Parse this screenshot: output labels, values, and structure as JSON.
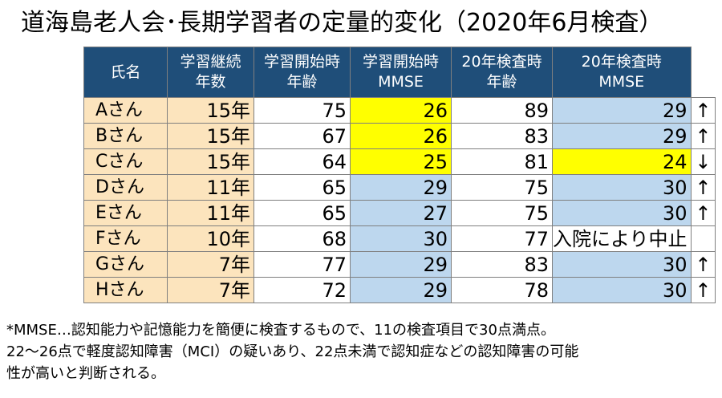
{
  "title": "道海島老人会･長期学習者の定量的変化（2020年6月検査）",
  "table": {
    "headers": [
      "氏名",
      "学習継続\n年数",
      "学習開始時\n年齢",
      "学習開始時\nMMSE",
      "20年検査時\n年齢",
      "20年検査時\nMMSE"
    ],
    "rows": [
      {
        "name": "Aさん",
        "years": "15年",
        "start_age": "75",
        "start_mmse": "26",
        "age_2020": "89",
        "mmse_2020": "29",
        "trend": "↑"
      },
      {
        "name": "Bさん",
        "years": "15年",
        "start_age": "67",
        "start_mmse": "26",
        "age_2020": "83",
        "mmse_2020": "29",
        "trend": "↑"
      },
      {
        "name": "Cさん",
        "years": "15年",
        "start_age": "64",
        "start_mmse": "25",
        "age_2020": "81",
        "mmse_2020": "24",
        "trend": "↓"
      },
      {
        "name": "Dさん",
        "years": "11年",
        "start_age": "65",
        "start_mmse": "29",
        "age_2020": "75",
        "mmse_2020": "30",
        "trend": "↑"
      },
      {
        "name": "Eさん",
        "years": "11年",
        "start_age": "65",
        "start_mmse": "27",
        "age_2020": "75",
        "mmse_2020": "30",
        "trend": "↑"
      },
      {
        "name": "Fさん",
        "years": "10年",
        "start_age": "68",
        "start_mmse": "30",
        "age_2020": "77",
        "mmse_2020": "入院により中止",
        "trend": ""
      },
      {
        "name": "Gさん",
        "years": "7年",
        "start_age": "77",
        "start_mmse": "29",
        "age_2020": "83",
        "mmse_2020": "30",
        "trend": "↑"
      },
      {
        "name": "Hさん",
        "years": "7年",
        "start_age": "72",
        "start_mmse": "29",
        "age_2020": "78",
        "mmse_2020": "30",
        "trend": "↑"
      }
    ]
  },
  "colors": {
    "header_bg": "#1f4e79",
    "name_bg": "#fce4bd",
    "highlight_yellow": "#ffff00",
    "highlight_blue": "#bdd7ee"
  },
  "footnote": [
    "*MMSE…認知能力や記憶能力を簡便に検査するもので、11の検査項目で30点満点。",
    "22～26点で軽度認知障害（MCI）の疑いあり、22点未満で認知症などの認知障害の可能",
    "性が高いと判断される。"
  ]
}
